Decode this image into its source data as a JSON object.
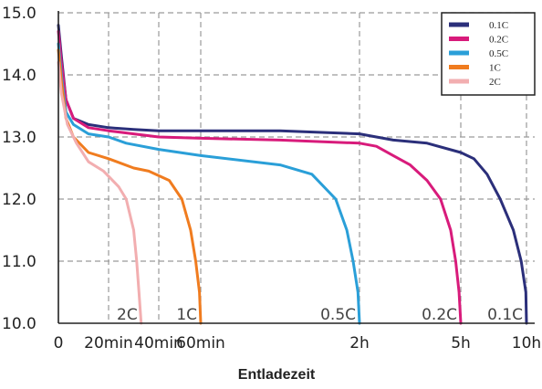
{
  "chart_data": {
    "type": "line",
    "xlabel": "Entladezeit",
    "ylabel": "",
    "ylim": [
      10.0,
      15.0
    ],
    "grid": true,
    "legend_position": "top-right",
    "y_ticks": [
      "10.0",
      "11.0",
      "12.0",
      "13.0",
      "14.0",
      "15.0"
    ],
    "x_ticks": [
      {
        "label": "0",
        "hours": 0
      },
      {
        "label": "20min",
        "hours": 0.333
      },
      {
        "label": "40min",
        "hours": 0.667
      },
      {
        "label": "60min",
        "hours": 1
      },
      {
        "label": "2h",
        "hours": 2
      },
      {
        "label": "5h",
        "hours": 5
      },
      {
        "label": "10h",
        "hours": 10
      }
    ],
    "series": [
      {
        "name": "0.1C",
        "end_label": "0.1C",
        "color": "#2b2f7a",
        "points": [
          [
            0,
            14.8
          ],
          [
            0.02,
            14.3
          ],
          [
            0.05,
            13.6
          ],
          [
            0.1,
            13.3
          ],
          [
            0.2,
            13.2
          ],
          [
            0.333,
            13.15
          ],
          [
            0.5,
            13.12
          ],
          [
            0.667,
            13.1
          ],
          [
            1,
            13.1
          ],
          [
            1.5,
            13.1
          ],
          [
            2,
            13.05
          ],
          [
            3,
            12.95
          ],
          [
            4,
            12.9
          ],
          [
            5,
            12.75
          ],
          [
            6,
            12.65
          ],
          [
            7,
            12.4
          ],
          [
            8,
            12.0
          ],
          [
            9,
            11.5
          ],
          [
            9.6,
            11.0
          ],
          [
            9.95,
            10.5
          ],
          [
            10,
            10.0
          ]
        ]
      },
      {
        "name": "0.2C",
        "end_label": "0.2C",
        "color": "#d81b7b",
        "points": [
          [
            0,
            14.7
          ],
          [
            0.02,
            14.2
          ],
          [
            0.05,
            13.6
          ],
          [
            0.1,
            13.3
          ],
          [
            0.2,
            13.15
          ],
          [
            0.333,
            13.1
          ],
          [
            0.5,
            13.05
          ],
          [
            0.667,
            13.0
          ],
          [
            1,
            12.98
          ],
          [
            1.5,
            12.95
          ],
          [
            2,
            12.9
          ],
          [
            2.5,
            12.85
          ],
          [
            3,
            12.7
          ],
          [
            3.5,
            12.55
          ],
          [
            4,
            12.3
          ],
          [
            4.4,
            12.0
          ],
          [
            4.7,
            11.5
          ],
          [
            4.85,
            11.0
          ],
          [
            4.95,
            10.5
          ],
          [
            5,
            10.0
          ]
        ]
      },
      {
        "name": "0.5C",
        "end_label": "0.5C",
        "color": "#2a9fd8",
        "points": [
          [
            0,
            14.5
          ],
          [
            0.02,
            14.0
          ],
          [
            0.05,
            13.4
          ],
          [
            0.1,
            13.2
          ],
          [
            0.2,
            13.05
          ],
          [
            0.333,
            13.0
          ],
          [
            0.45,
            12.9
          ],
          [
            0.667,
            12.8
          ],
          [
            1,
            12.7
          ],
          [
            1.5,
            12.55
          ],
          [
            1.7,
            12.4
          ],
          [
            1.85,
            12.0
          ],
          [
            1.92,
            11.5
          ],
          [
            1.96,
            11.0
          ],
          [
            1.99,
            10.5
          ],
          [
            2,
            10.0
          ]
        ]
      },
      {
        "name": "1C",
        "end_label": "1C",
        "color": "#f07c1f",
        "points": [
          [
            0,
            14.4
          ],
          [
            0.02,
            13.9
          ],
          [
            0.05,
            13.3
          ],
          [
            0.1,
            13.0
          ],
          [
            0.2,
            12.75
          ],
          [
            0.333,
            12.65
          ],
          [
            0.5,
            12.5
          ],
          [
            0.6,
            12.45
          ],
          [
            0.75,
            12.3
          ],
          [
            0.85,
            12.0
          ],
          [
            0.92,
            11.5
          ],
          [
            0.96,
            11.0
          ],
          [
            0.99,
            10.5
          ],
          [
            1,
            10.0
          ]
        ]
      },
      {
        "name": "2C",
        "end_label": "2C",
        "color": "#f2aeb0",
        "points": [
          [
            0,
            14.2
          ],
          [
            0.02,
            13.7
          ],
          [
            0.06,
            13.2
          ],
          [
            0.12,
            12.9
          ],
          [
            0.2,
            12.6
          ],
          [
            0.3,
            12.45
          ],
          [
            0.4,
            12.2
          ],
          [
            0.45,
            12.0
          ],
          [
            0.5,
            11.5
          ],
          [
            0.52,
            11.0
          ],
          [
            0.535,
            10.5
          ],
          [
            0.55,
            10.0
          ]
        ]
      }
    ]
  }
}
